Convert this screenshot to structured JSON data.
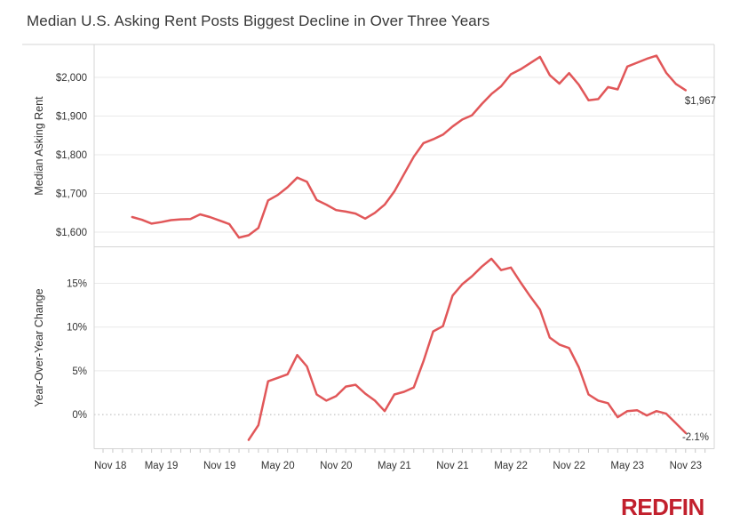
{
  "title": "Median U.S. Asking Rent Posts Biggest Decline in Over Three Years",
  "logo_text": "REDFIN",
  "colors": {
    "line": "#e15759",
    "logo_red": "#c2202d",
    "title_text": "#373737",
    "axis_text": "#333333",
    "gridline": "#e9e9e9",
    "zero_line": "#b5b5b5",
    "pane_border": "#d4d4d4",
    "minor_tick": "#c8c8c8"
  },
  "annotations": {
    "rent_last_label": "$1,967",
    "yoy_last_label": "-2.1%"
  },
  "x_axis": {
    "tick_labels": [
      "Nov 18",
      "May 19",
      "Nov 19",
      "May 20",
      "Nov 20",
      "May 21",
      "Nov 21",
      "May 22",
      "Nov 22",
      "May 23",
      "Nov 23"
    ],
    "label_interval_months": 6,
    "minor_tick_interval": "1 month"
  },
  "chart_data": [
    {
      "type": "line",
      "panel": "top",
      "series_name": "Median Asking Rent",
      "ylabel": "Median Asking Rent",
      "unit": "USD",
      "frequency": "monthly",
      "start_month": "Feb 2019",
      "end_month": "Nov 2023",
      "start_offset_months_after_nov18": 3,
      "values": [
        1639,
        1632,
        1622,
        1626,
        1631,
        1633,
        1634,
        1646,
        1639,
        1630,
        1621,
        1586,
        1592,
        1611,
        1682,
        1696,
        1716,
        1741,
        1730,
        1683,
        1671,
        1657,
        1653,
        1648,
        1635,
        1650,
        1671,
        1705,
        1750,
        1795,
        1830,
        1840,
        1852,
        1873,
        1891,
        1902,
        1931,
        1957,
        1977,
        2008,
        2021,
        2037,
        2053,
        2006,
        1984,
        2011,
        1981,
        1941,
        1944,
        1975,
        1969,
        2028,
        2038,
        2048,
        2056,
        2012,
        1983,
        1967
      ],
      "yticks": [
        {
          "label": "$2,000",
          "value": 2000
        },
        {
          "label": "$1,900",
          "value": 1900
        },
        {
          "label": "$1,800",
          "value": 1800
        },
        {
          "label": "$1,700",
          "value": 1700
        },
        {
          "label": "$1,600",
          "value": 1600
        }
      ],
      "ylim": [
        1561,
        2085
      ],
      "grid": "horizontal",
      "last_point_label": "$1,967"
    },
    {
      "type": "line",
      "panel": "bottom",
      "series_name": "Year-Over-Year Change",
      "ylabel": "Year-Over-Year Change",
      "unit": "percent",
      "frequency": "monthly",
      "start_month": "Feb 2020",
      "end_month": "Nov 2023",
      "start_offset_months_after_nov18": 15,
      "values": [
        -2.9,
        -1.2,
        3.8,
        4.2,
        4.6,
        6.8,
        5.5,
        2.3,
        1.6,
        2.1,
        3.2,
        3.4,
        2.4,
        1.6,
        0.4,
        2.3,
        2.6,
        3.1,
        6.1,
        9.5,
        10.1,
        13.6,
        14.9,
        15.8,
        16.9,
        17.8,
        16.5,
        16.8,
        15.1,
        13.5,
        12.0,
        8.8,
        8.0,
        7.6,
        5.4,
        2.3,
        1.6,
        1.3,
        -0.3,
        0.4,
        0.5,
        -0.1,
        0.4,
        0.1,
        -1.0,
        -2.1
      ],
      "yticks": [
        {
          "label": "15%",
          "value": 15
        },
        {
          "label": "10%",
          "value": 10
        },
        {
          "label": "5%",
          "value": 5
        },
        {
          "label": "0%",
          "value": 0
        }
      ],
      "ylim": [
        -3.9,
        19.2
      ],
      "zero_line": "dotted",
      "grid": "horizontal",
      "last_point_label": "-2.1%"
    }
  ]
}
